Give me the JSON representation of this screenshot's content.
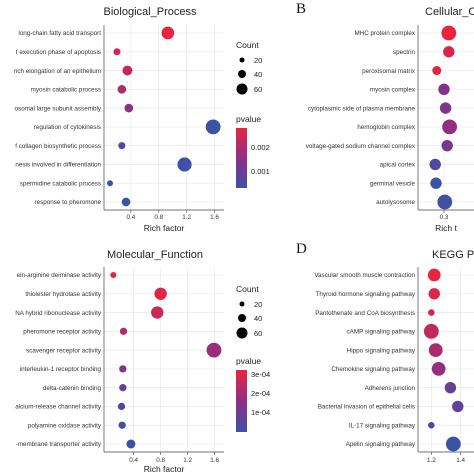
{
  "chart_data": [
    {
      "type": "scatter",
      "title": "Biological_Process",
      "xlabel": "Rich factor",
      "xlim": [
        0.1,
        1.65
      ],
      "xticks": [
        0.4,
        0.8,
        1.2,
        1.6
      ],
      "xtick_labels": [
        "0.4",
        "0.8",
        "1.2",
        "1.6"
      ],
      "categories": [
        "long-chain fatty acid transport",
        "f execution phase of apoptosis",
        "nch elongation of an epithelium",
        "myosin catabolic process",
        "osomal large subunit assembly",
        "regulation of cytokinesis",
        "f collagen biosynthetic process",
        "nesis involved in differentiation",
        "spermidine catabolic process",
        "response to pheromone"
      ],
      "x": [
        0.93,
        0.2,
        0.35,
        0.27,
        0.37,
        1.58,
        0.27,
        1.17,
        0.1,
        0.33
      ],
      "count": [
        60,
        10,
        30,
        20,
        20,
        90,
        10,
        80,
        5,
        20
      ],
      "pvalue": [
        0.0029,
        0.0026,
        0.0024,
        0.0021,
        0.0016,
        0.0004,
        0.0007,
        0.0005,
        0.0006,
        0.0004
      ]
    },
    {
      "type": "scatter",
      "title": "Cellular_Com",
      "xlabel": "Rich t",
      "xlim": [
        0.05,
        0.6
      ],
      "xticks": [
        0.3
      ],
      "xtick_labels": [
        "0.3"
      ],
      "categories": [
        "MHC protein complex",
        "spectrin",
        "peroxisomal matrix",
        "myosin complex",
        "cytoplasmic side of plasma membrane",
        "hemoglobin complex",
        "voltage-gated sodium channel complex",
        "apical cortex",
        "germinal vesicle",
        "autolysosome"
      ],
      "x": [
        0.36,
        0.36,
        0.21,
        0.3,
        0.32,
        0.37,
        0.34,
        0.19,
        0.2,
        0.31
      ],
      "count": [
        20,
        10,
        5,
        10,
        10,
        20,
        10,
        10,
        10,
        20
      ],
      "pvalue": [
        0.0029,
        0.0027,
        0.0028,
        0.0015,
        0.0014,
        0.0017,
        0.0013,
        0.0007,
        0.0004,
        0.0005
      ]
    },
    {
      "type": "scatter",
      "title": "Molecular_Function",
      "xlabel": "Rich factor",
      "xlim": [
        0.05,
        1.65
      ],
      "xticks": [
        0.4,
        0.8,
        1.2,
        1.6
      ],
      "xtick_labels": [
        "0.4",
        "0.8",
        "1.2",
        "1.6"
      ],
      "categories": [
        "ein-arginine deiminase activity",
        "thiolester hydrolase activity",
        "NA hybrid ribonuclease activity",
        "pheromone receptor activity",
        "scavenger receptor activity",
        "interleukin-1 receptor binding",
        "delta-catenin binding",
        "alcium-release channel activity",
        "polyamine oxidase activity",
        "-membrane transporter activity"
      ],
      "x": [
        0.1,
        0.8,
        0.75,
        0.25,
        1.59,
        0.24,
        0.24,
        0.22,
        0.23,
        0.36
      ],
      "count": [
        5,
        50,
        50,
        10,
        80,
        10,
        10,
        10,
        10,
        20
      ],
      "pvalue": [
        0.00029,
        0.00028,
        0.00025,
        0.00022,
        0.00019,
        0.00015,
        0.00011,
        8e-05,
        7e-05,
        5e-05
      ]
    },
    {
      "type": "scatter",
      "title": "KEGG Pa",
      "xlabel": "",
      "xlim": [
        1.15,
        1.45
      ],
      "xticks": [
        1.2,
        1.4
      ],
      "xtick_labels": [
        "1.2",
        "1.4"
      ],
      "categories": [
        "Vascular smooth muscle contraction",
        "Thyroid hormone signaling pathway",
        "Pantothenate and CoA biosynthesis",
        "cAMP signaling pathway",
        "Hippo signaling pathway",
        "Chemokine signaling pathway",
        "Adherens junction",
        "Bacterial invasion of epithelial cells",
        "IL-17 signaling pathway",
        "Apelin signaling pathway"
      ],
      "x": [
        1.22,
        1.22,
        1.2,
        1.2,
        1.23,
        1.25,
        1.33,
        1.38,
        1.2,
        1.35
      ],
      "count": [
        40,
        30,
        5,
        60,
        50,
        50,
        30,
        30,
        5,
        60
      ],
      "pvalue": [
        0.95,
        0.9,
        0.85,
        0.8,
        0.7,
        0.6,
        0.4,
        0.35,
        0.3,
        0.2
      ]
    }
  ],
  "panel_letters": [
    "B",
    "D"
  ],
  "legend_bp": {
    "count_title": "Count",
    "count_labels": [
      "20",
      "40",
      "60"
    ],
    "pvalue_title": "pvalue",
    "pvalue_labels": [
      "0.002",
      "0.001"
    ]
  },
  "legend_mf": {
    "count_title": "Count",
    "count_labels": [
      "20",
      "40",
      "60"
    ],
    "pvalue_title": "pvalue",
    "pvalue_labels": [
      "3e-04",
      "2e-04",
      "1e-04"
    ]
  },
  "colors": {
    "low": "#3a53a4",
    "mid": "#8e2f86",
    "high": "#e8243f",
    "grid": "#e6e6e6"
  }
}
